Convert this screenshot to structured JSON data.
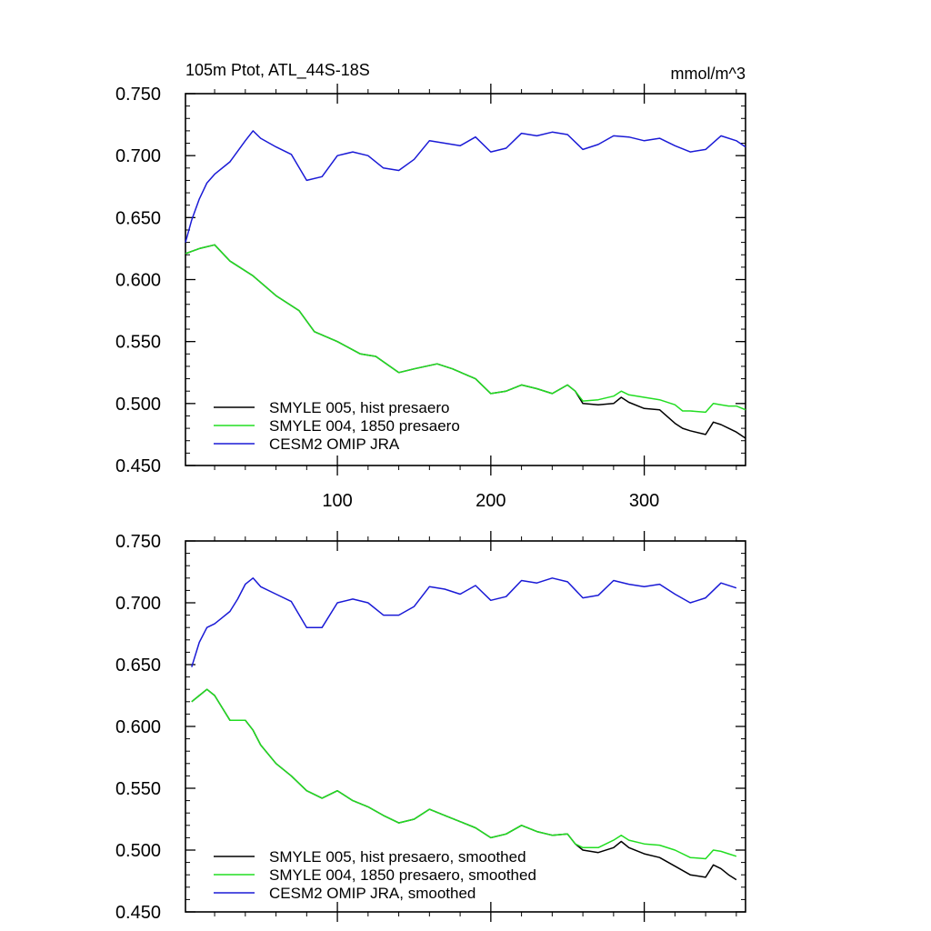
{
  "chart_data": [
    {
      "type": "line",
      "title": "105m Ptot, ATL_44S-18S",
      "units": "mmol/m^3",
      "xlabel": "",
      "ylabel": "",
      "xlim": [
        1,
        366
      ],
      "ylim": [
        0.45,
        0.75
      ],
      "xticks": [
        100,
        200,
        300
      ],
      "xtick_labels": [
        "100",
        "200",
        "300"
      ],
      "yticks": [
        0.45,
        0.5,
        0.55,
        0.6,
        0.65,
        0.7,
        0.75
      ],
      "ytick_labels": [
        "0.450",
        "0.500",
        "0.550",
        "0.600",
        "0.650",
        "0.700",
        "0.750"
      ],
      "grid": false,
      "legend_position": "bottom-left",
      "series": [
        {
          "name": "SMYLE 005, hist presaero",
          "color": "#000000",
          "x": [
            1,
            10,
            20,
            30,
            45,
            60,
            75,
            85,
            100,
            115,
            125,
            140,
            150,
            165,
            175,
            190,
            200,
            210,
            220,
            230,
            240,
            250,
            255,
            260,
            270,
            280,
            285,
            290,
            300,
            310,
            320,
            325,
            330,
            340,
            345,
            350,
            355,
            360,
            366
          ],
          "y": [
            0.621,
            0.625,
            0.628,
            0.615,
            0.603,
            0.587,
            0.575,
            0.558,
            0.55,
            0.54,
            0.538,
            0.525,
            0.528,
            0.532,
            0.528,
            0.52,
            0.508,
            0.51,
            0.515,
            0.512,
            0.508,
            0.515,
            0.51,
            0.5,
            0.499,
            0.5,
            0.505,
            0.501,
            0.496,
            0.495,
            0.484,
            0.48,
            0.478,
            0.475,
            0.485,
            0.483,
            0.48,
            0.477,
            0.472
          ]
        },
        {
          "name": "SMYLE 004, 1850 presaero",
          "color": "#22dd22",
          "x": [
            1,
            10,
            20,
            30,
            45,
            60,
            75,
            85,
            100,
            115,
            125,
            140,
            150,
            165,
            175,
            190,
            200,
            210,
            220,
            230,
            240,
            250,
            255,
            260,
            270,
            280,
            285,
            290,
            300,
            310,
            320,
            325,
            330,
            340,
            345,
            350,
            355,
            360,
            366
          ],
          "y": [
            0.621,
            0.625,
            0.628,
            0.615,
            0.603,
            0.587,
            0.575,
            0.558,
            0.55,
            0.54,
            0.538,
            0.525,
            0.528,
            0.532,
            0.528,
            0.52,
            0.508,
            0.51,
            0.515,
            0.512,
            0.508,
            0.515,
            0.51,
            0.502,
            0.503,
            0.506,
            0.51,
            0.507,
            0.505,
            0.503,
            0.499,
            0.494,
            0.494,
            0.493,
            0.5,
            0.499,
            0.498,
            0.498,
            0.495
          ]
        },
        {
          "name": "CESM2 OMIP JRA",
          "color": "#1a1ad6",
          "x": [
            1,
            5,
            10,
            15,
            20,
            30,
            40,
            45,
            50,
            60,
            70,
            80,
            90,
            100,
            110,
            120,
            130,
            140,
            150,
            160,
            170,
            180,
            190,
            200,
            210,
            220,
            230,
            240,
            250,
            260,
            270,
            280,
            290,
            300,
            310,
            320,
            330,
            340,
            350,
            360,
            366
          ],
          "y": [
            0.63,
            0.648,
            0.665,
            0.678,
            0.685,
            0.695,
            0.712,
            0.72,
            0.714,
            0.707,
            0.701,
            0.68,
            0.683,
            0.7,
            0.703,
            0.7,
            0.69,
            0.688,
            0.697,
            0.712,
            0.71,
            0.708,
            0.715,
            0.703,
            0.706,
            0.718,
            0.716,
            0.719,
            0.717,
            0.705,
            0.709,
            0.716,
            0.715,
            0.712,
            0.714,
            0.708,
            0.703,
            0.705,
            0.716,
            0.712,
            0.707
          ]
        }
      ]
    },
    {
      "type": "line",
      "title": "",
      "xlabel": "",
      "ylabel": "",
      "xlim": [
        1,
        366
      ],
      "ylim": [
        0.45,
        0.75
      ],
      "xticks": [
        100,
        200,
        300
      ],
      "yticks": [
        0.45,
        0.5,
        0.55,
        0.6,
        0.65,
        0.7,
        0.75
      ],
      "ytick_labels": [
        "0.450",
        "0.500",
        "0.550",
        "0.600",
        "0.650",
        "0.700",
        "0.750"
      ],
      "grid": false,
      "legend_position": "bottom-left",
      "series": [
        {
          "name": "SMYLE 005, hist presaero, smoothed",
          "color": "#000000",
          "x": [
            5,
            10,
            15,
            20,
            25,
            30,
            40,
            45,
            50,
            60,
            70,
            80,
            90,
            100,
            110,
            120,
            130,
            140,
            150,
            160,
            170,
            180,
            190,
            200,
            210,
            220,
            230,
            240,
            250,
            255,
            260,
            270,
            280,
            285,
            290,
            300,
            310,
            320,
            330,
            340,
            345,
            350,
            355,
            360
          ],
          "y": [
            0.62,
            0.625,
            0.63,
            0.625,
            0.615,
            0.605,
            0.605,
            0.597,
            0.585,
            0.57,
            0.56,
            0.548,
            0.542,
            0.548,
            0.54,
            0.535,
            0.528,
            0.522,
            0.525,
            0.533,
            0.528,
            0.523,
            0.518,
            0.51,
            0.513,
            0.52,
            0.515,
            0.512,
            0.513,
            0.505,
            0.5,
            0.498,
            0.502,
            0.507,
            0.502,
            0.497,
            0.494,
            0.487,
            0.48,
            0.478,
            0.488,
            0.485,
            0.48,
            0.476
          ]
        },
        {
          "name": "SMYLE 004, 1850 presaero, smoothed",
          "color": "#22dd22",
          "x": [
            5,
            10,
            15,
            20,
            25,
            30,
            40,
            45,
            50,
            60,
            70,
            80,
            90,
            100,
            110,
            120,
            130,
            140,
            150,
            160,
            170,
            180,
            190,
            200,
            210,
            220,
            230,
            240,
            250,
            255,
            260,
            270,
            280,
            285,
            290,
            300,
            310,
            320,
            330,
            340,
            345,
            350,
            355,
            360
          ],
          "y": [
            0.62,
            0.625,
            0.63,
            0.625,
            0.615,
            0.605,
            0.605,
            0.597,
            0.585,
            0.57,
            0.56,
            0.548,
            0.542,
            0.548,
            0.54,
            0.535,
            0.528,
            0.522,
            0.525,
            0.533,
            0.528,
            0.523,
            0.518,
            0.51,
            0.513,
            0.52,
            0.515,
            0.512,
            0.513,
            0.505,
            0.502,
            0.502,
            0.508,
            0.512,
            0.508,
            0.505,
            0.504,
            0.5,
            0.494,
            0.493,
            0.5,
            0.499,
            0.497,
            0.495
          ]
        },
        {
          "name": "CESM2 OMIP JRA, smoothed",
          "color": "#1a1ad6",
          "x": [
            5,
            10,
            15,
            20,
            25,
            30,
            35,
            40,
            45,
            50,
            60,
            70,
            80,
            90,
            100,
            110,
            120,
            130,
            140,
            150,
            160,
            170,
            180,
            190,
            200,
            210,
            220,
            230,
            240,
            250,
            260,
            270,
            280,
            290,
            300,
            310,
            320,
            330,
            340,
            350,
            360
          ],
          "y": [
            0.648,
            0.668,
            0.68,
            0.683,
            0.688,
            0.693,
            0.703,
            0.715,
            0.72,
            0.713,
            0.707,
            0.701,
            0.68,
            0.68,
            0.7,
            0.703,
            0.7,
            0.69,
            0.69,
            0.697,
            0.713,
            0.711,
            0.707,
            0.714,
            0.702,
            0.705,
            0.718,
            0.716,
            0.72,
            0.717,
            0.704,
            0.706,
            0.718,
            0.715,
            0.713,
            0.715,
            0.707,
            0.7,
            0.704,
            0.716,
            0.712
          ]
        }
      ]
    }
  ]
}
